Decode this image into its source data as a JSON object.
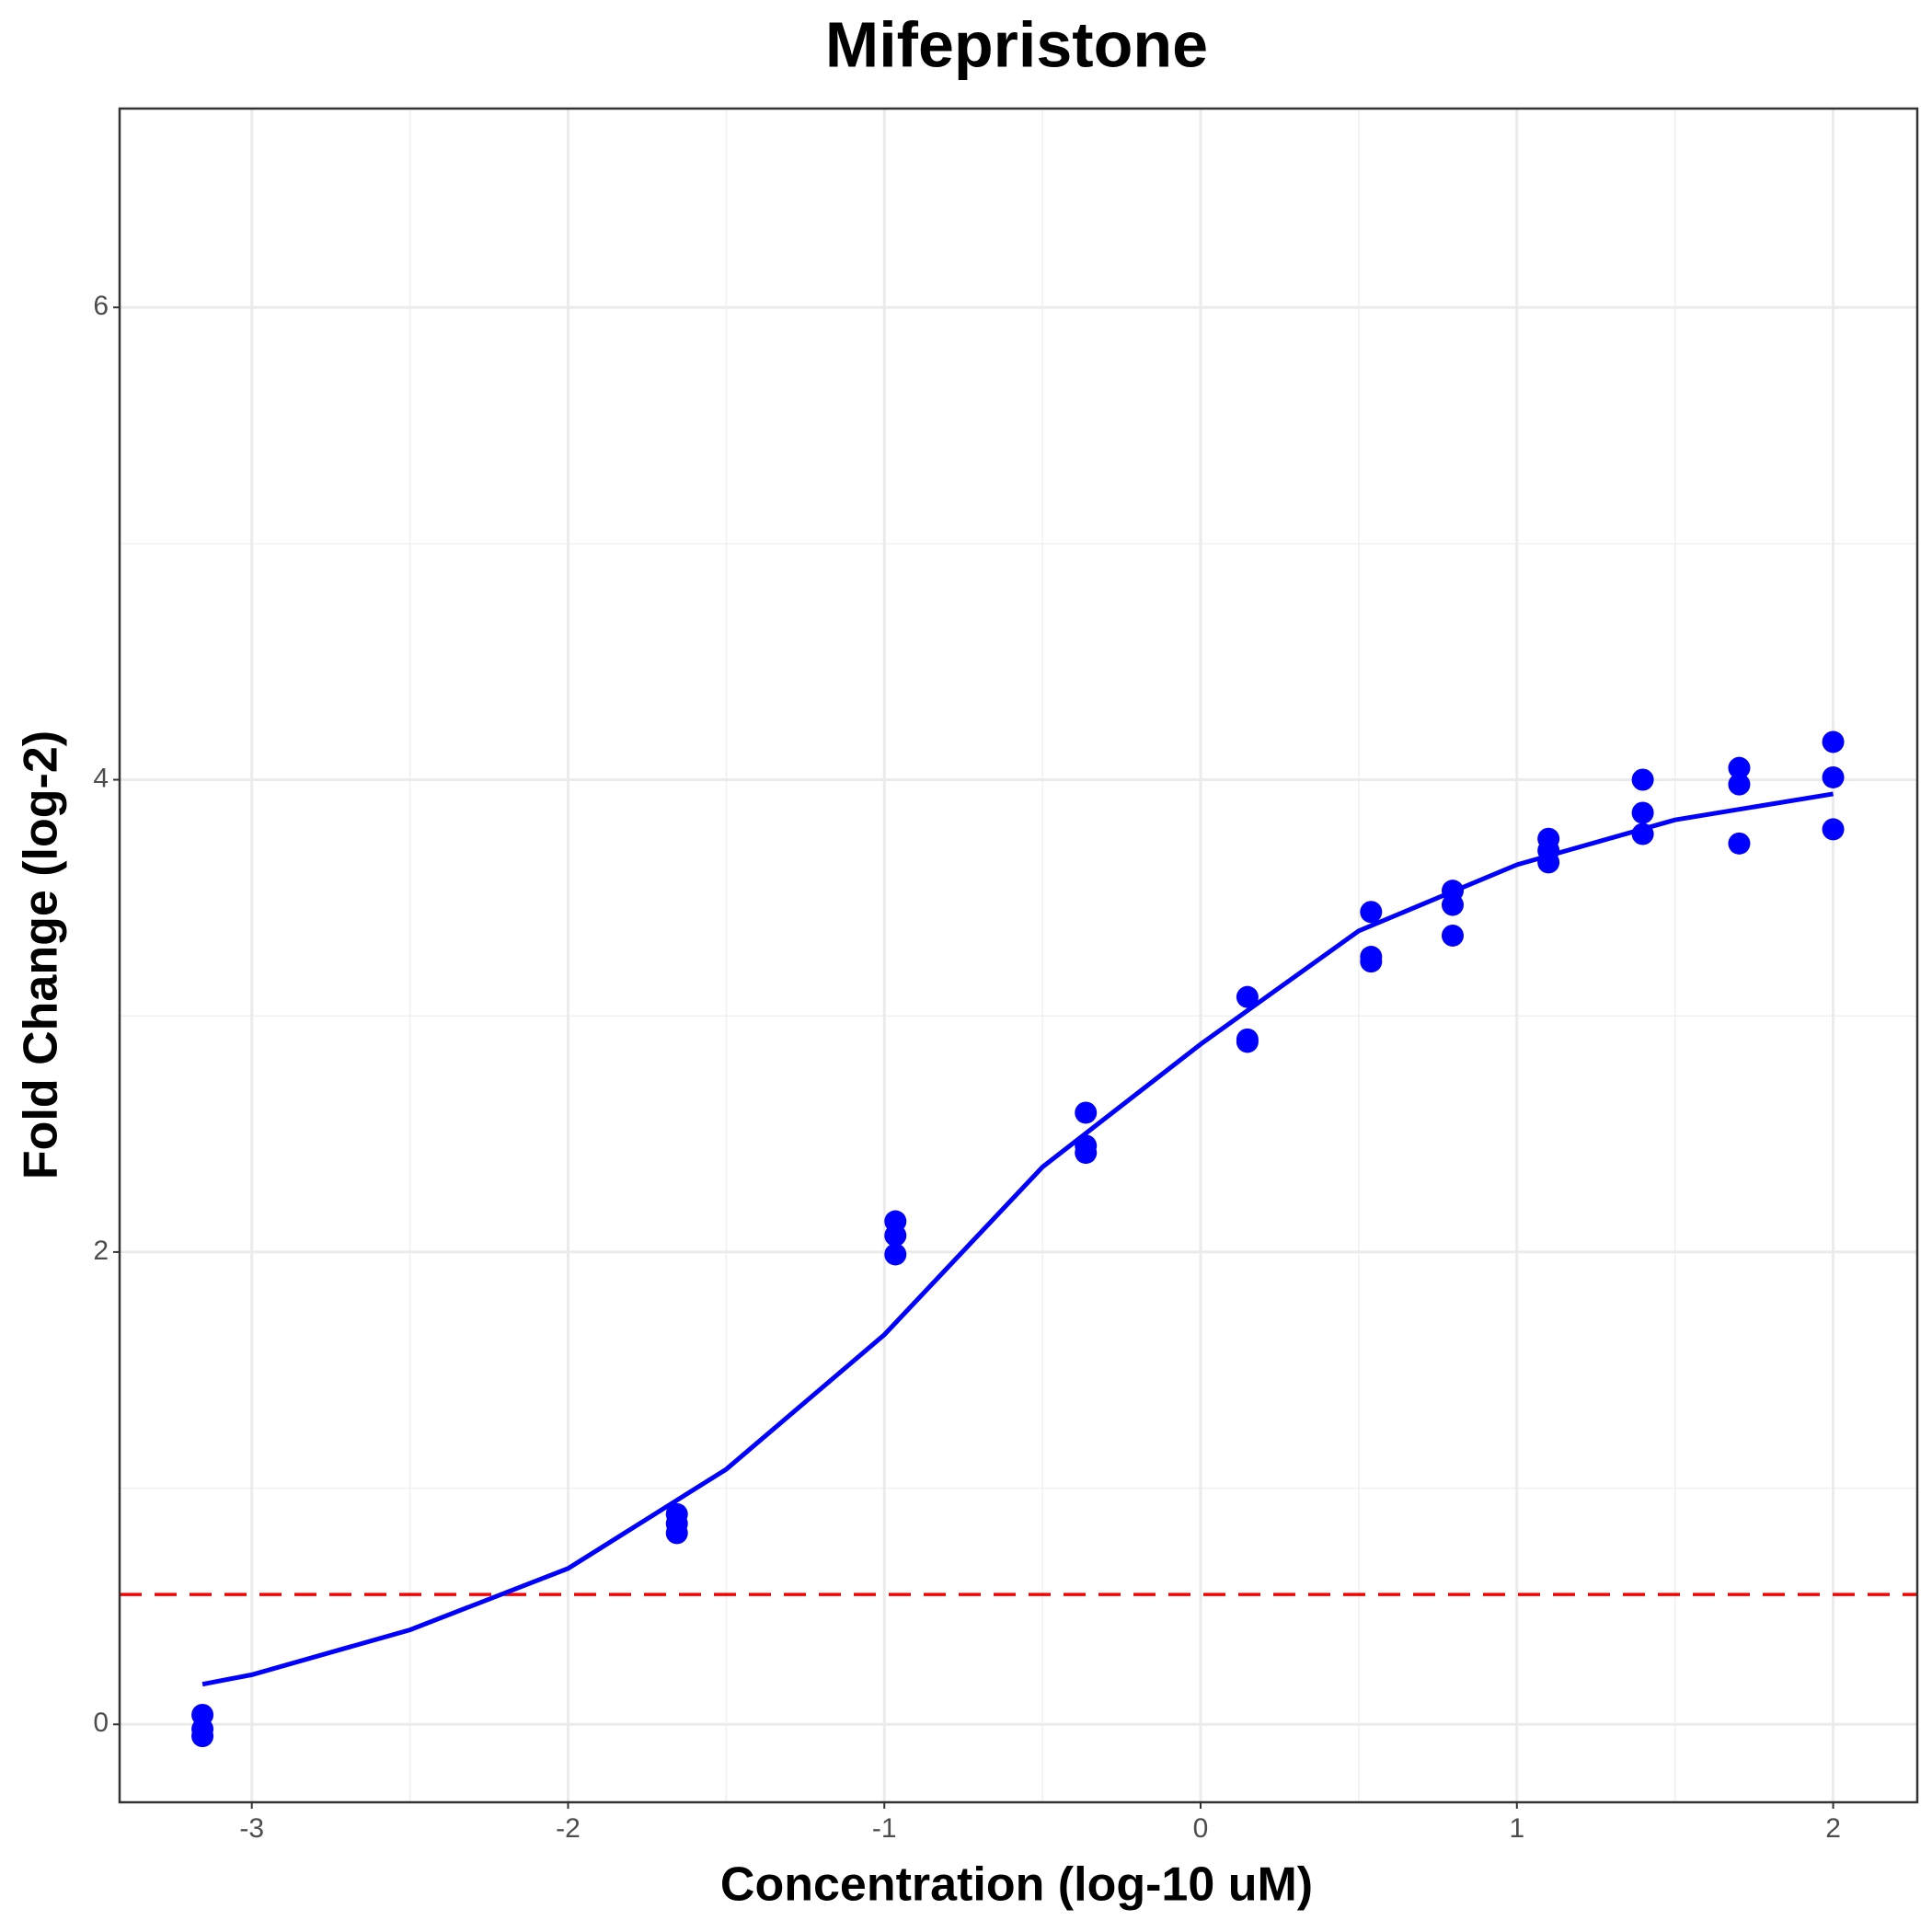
{
  "chart_data": {
    "type": "scatter",
    "title": "Mifepristone",
    "x_label": "Concentration (log-10 uM)",
    "y_label": "Fold Change (log-2)",
    "xlim": [
      -3.418,
      2.266
    ],
    "ylim": [
      -0.33,
      6.842
    ],
    "xticks": [
      -3,
      -2,
      -1,
      0,
      1,
      2
    ],
    "yticks": [
      0,
      2,
      4,
      6
    ],
    "grid": true,
    "minor_grid": true,
    "points": {
      "color": "#0000ff",
      "x": [
        -3.156,
        -3.156,
        -3.156,
        -1.656,
        -1.656,
        -1.656,
        -0.965,
        -0.965,
        -0.965,
        -0.363,
        -0.363,
        -0.363,
        0.148,
        0.148,
        0.148,
        0.539,
        0.539,
        0.539,
        0.797,
        0.797,
        0.797,
        1.1,
        1.1,
        1.1,
        1.398,
        1.398,
        1.398,
        1.703,
        1.703,
        1.703,
        2.0,
        2.0,
        2.0
      ],
      "y": [
        0.04,
        -0.02,
        -0.05,
        0.89,
        0.85,
        0.81,
        2.13,
        2.07,
        1.99,
        2.59,
        2.45,
        2.42,
        3.08,
        2.9,
        2.89,
        3.44,
        3.25,
        3.23,
        3.53,
        3.47,
        3.34,
        3.75,
        3.7,
        3.65,
        4.0,
        3.86,
        3.77,
        4.05,
        3.98,
        3.73,
        4.16,
        4.01,
        3.79
      ]
    },
    "fit": {
      "color": "#0000ff",
      "x": [
        -3.156,
        -3,
        -2.5,
        -2,
        -1.5,
        -1,
        -0.5,
        0,
        0.5,
        1,
        1.5,
        2
      ],
      "y": [
        0.17,
        0.21,
        0.4,
        0.66,
        1.08,
        1.65,
        2.36,
        2.88,
        3.36,
        3.64,
        3.83,
        3.94
      ]
    },
    "threshold": {
      "value": 0.55,
      "color": "#ff0000",
      "dashed": true
    }
  }
}
